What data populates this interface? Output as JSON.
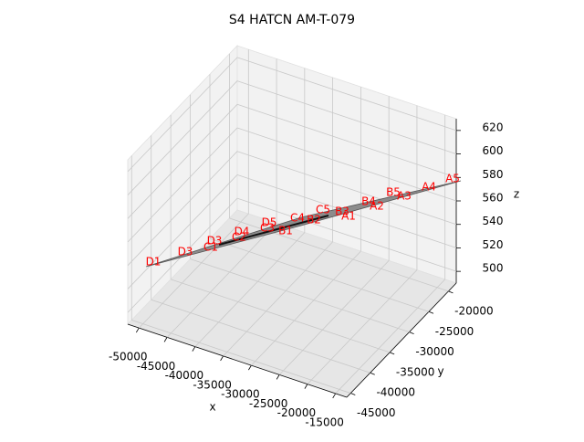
{
  "chart_data": {
    "type": "surface3d",
    "title": "S4 HATCN AM-T-079",
    "xlabel": "x",
    "ylabel": "y",
    "zlabel": "z",
    "xlim": [
      -52000,
      -13000
    ],
    "ylim": [
      -46000,
      -18000
    ],
    "zlim": [
      490,
      630
    ],
    "xticks": [
      -50000,
      -45000,
      -40000,
      -35000,
      -30000,
      -25000,
      -20000,
      -15000
    ],
    "yticks": [
      -45000,
      -40000,
      -35000,
      -30000,
      -25000,
      -20000
    ],
    "zticks": [
      500,
      520,
      540,
      560,
      580,
      600,
      620
    ],
    "grid": true,
    "point_color": "red",
    "point_labels": [
      "D1",
      "D3",
      "C1",
      "D3",
      "C2",
      "D4",
      "C3",
      "B1",
      "D5",
      "C4",
      "B2",
      "C5",
      "B3",
      "A1",
      "B4",
      "A2",
      "B5",
      "A3",
      "A4",
      "A5"
    ]
  }
}
